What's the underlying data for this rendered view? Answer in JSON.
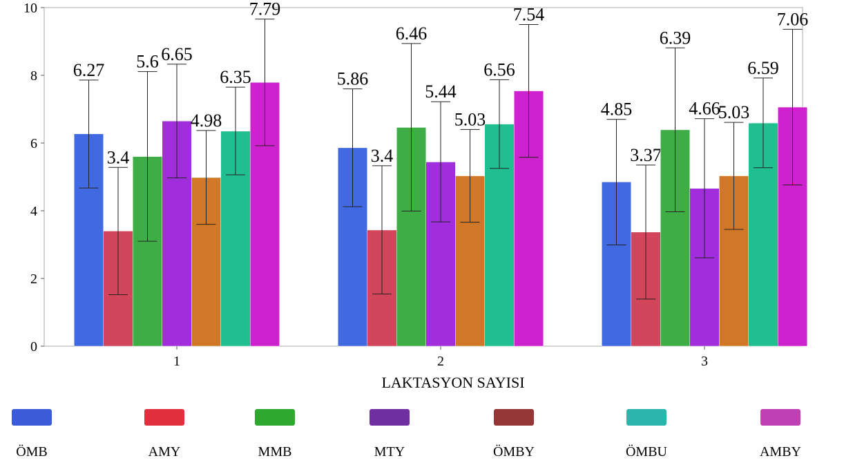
{
  "chart_data": {
    "type": "bar",
    "xlabel": "LAKTASYON SAYISI",
    "ylabel": "",
    "ylim": [
      0,
      10
    ],
    "yticks": [
      0,
      2,
      4,
      6,
      8,
      10
    ],
    "categories": [
      "1",
      "2",
      "3"
    ],
    "grid": false,
    "legend_position": "bottom",
    "error_bars": true,
    "series": [
      {
        "name": "ÖMB",
        "color": "#4169e1",
        "legend_color": "#3b5bdb",
        "values": [
          6.27,
          5.86,
          4.85
        ],
        "err_low": [
          4.67,
          4.12,
          2.99
        ],
        "err_high": [
          7.86,
          7.6,
          6.7
        ]
      },
      {
        "name": "AMY",
        "color": "#d2455a",
        "legend_color": "#e03040",
        "values": [
          3.4,
          3.43,
          3.37
        ],
        "err_low": [
          1.52,
          1.54,
          1.39
        ],
        "err_high": [
          5.28,
          5.33,
          5.35
        ]
      },
      {
        "name": "MMB",
        "color": "#3fad46",
        "legend_color": "#2ea82e",
        "values": [
          5.6,
          6.46,
          6.39
        ],
        "err_low": [
          3.1,
          3.99,
          3.97
        ],
        "err_high": [
          8.11,
          8.94,
          8.81
        ]
      },
      {
        "name": "MTY",
        "color": "#a02edd",
        "legend_color": "#7030a0",
        "values": [
          6.65,
          5.44,
          4.66
        ],
        "err_low": [
          4.97,
          3.67,
          2.61
        ],
        "err_high": [
          8.33,
          7.22,
          6.72
        ]
      },
      {
        "name": "ÖMBY",
        "color": "#d07828",
        "legend_color": "#943636",
        "values": [
          4.98,
          5.03,
          5.03
        ],
        "err_low": [
          3.6,
          3.66,
          3.45
        ],
        "err_high": [
          6.37,
          6.4,
          6.61
        ]
      },
      {
        "name": "ÖMBU",
        "color": "#21bf90",
        "legend_color": "#2ab5ad",
        "values": [
          6.35,
          6.56,
          6.59
        ],
        "err_low": [
          5.06,
          5.25,
          5.27
        ],
        "err_high": [
          7.65,
          7.87,
          7.92
        ]
      },
      {
        "name": "AMBY",
        "color": "#cd22cd",
        "legend_color": "#c040b4",
        "values": [
          7.79,
          7.54,
          7.06
        ],
        "err_low": [
          5.92,
          5.58,
          4.76
        ],
        "err_high": [
          9.66,
          9.5,
          9.36
        ]
      }
    ],
    "data_labels": [
      [
        "6.27",
        "3.4",
        "5.6",
        "6.65",
        "4.98",
        "6.35",
        "7.79"
      ],
      [
        "5.86",
        "3.4",
        "6.46",
        "5.44",
        "5.03",
        "6.56",
        "7.54"
      ],
      [
        "4.85",
        "3.37",
        "6.39",
        "4.66",
        "5.03",
        "6.59",
        "7.06"
      ]
    ]
  }
}
